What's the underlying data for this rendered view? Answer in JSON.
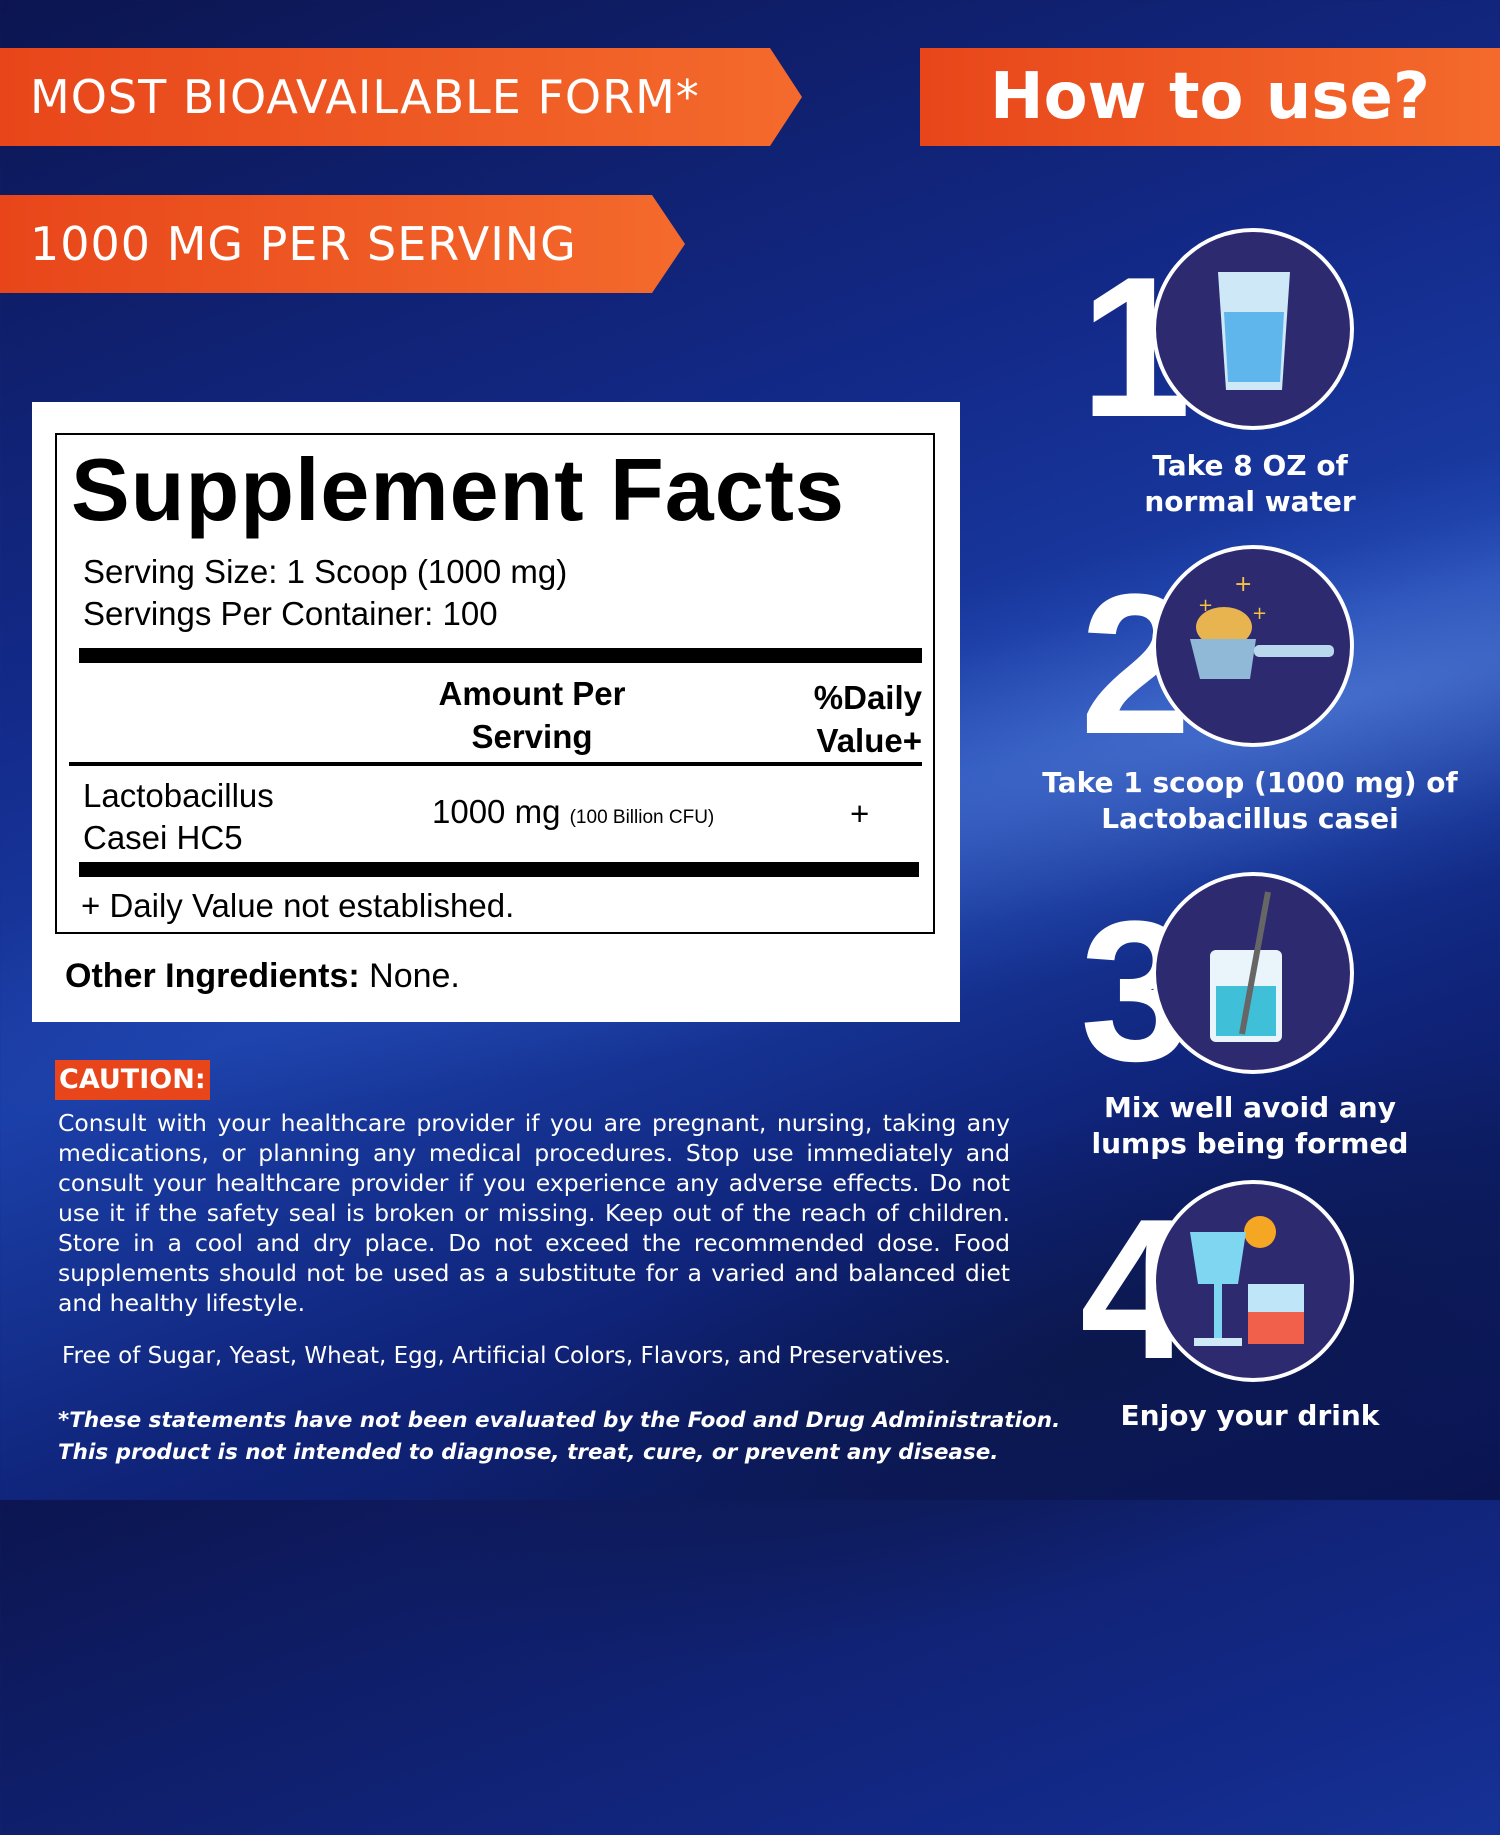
{
  "banners": {
    "bioavailable": "MOST BIOAVAILABLE FORM*",
    "per_serving": "1000 MG PER SERVING",
    "how_to_use": "How to use?"
  },
  "facts": {
    "title": "Supplement Facts",
    "serving_size": "Serving Size: 1 Scoop (1000 mg)",
    "servings_per_container": "Servings Per Container: 100",
    "col_amount_1": "Amount Per",
    "col_amount_2": "Serving",
    "col_dv_1": "%Daily",
    "col_dv_2": "Value+",
    "ingredient_1": "Lactobacillus",
    "ingredient_2": "Casei HC5",
    "amount": "1000 mg",
    "amount_note": "(100 Billion CFU)",
    "dv": "+",
    "footnote": "+ Daily Value not established.",
    "other_label": "Other Ingredients:",
    "other_value": " None."
  },
  "caution": {
    "label": "CAUTION:",
    "text": "Consult with your healthcare provider if you are pregnant, nursing, taking any medications, or planning any medical procedures. Stop use immediately and consult your healthcare provider if you experience any adverse effects. Do not use it if the safety seal is broken or missing. Keep out of the reach of children. Store in a cool and dry place. Do not exceed the recommended dose. Food supplements should not be used as a substitute for a varied and balanced diet and healthy lifestyle.",
    "free_of": "Free of Sugar, Yeast, Wheat, Egg, Artificial Colors, Flavors, and Preservatives.",
    "disclaimer_1": "*These statements have not been evaluated by the Food and Drug Administration.",
    "disclaimer_2": "This product is not intended to diagnose, treat, cure, or prevent any disease."
  },
  "steps": [
    {
      "number": "1",
      "icon": "water-glass-icon",
      "line1": "Take  8 OZ  of",
      "line2": "normal water"
    },
    {
      "number": "2",
      "icon": "scoop-icon",
      "line1": "Take 1 scoop (1000 mg) of",
      "line2": "Lactobacillus casei"
    },
    {
      "number": "3",
      "icon": "mixing-cup-icon",
      "line1": "Mix well avoid any",
      "line2": "lumps being formed"
    },
    {
      "number": "4",
      "icon": "drinks-icon",
      "line1": "Enjoy your drink",
      "line2": ""
    }
  ],
  "colors": {
    "accent": "#e8461a",
    "background": "#132a8a",
    "circle": "#2e2a70"
  }
}
